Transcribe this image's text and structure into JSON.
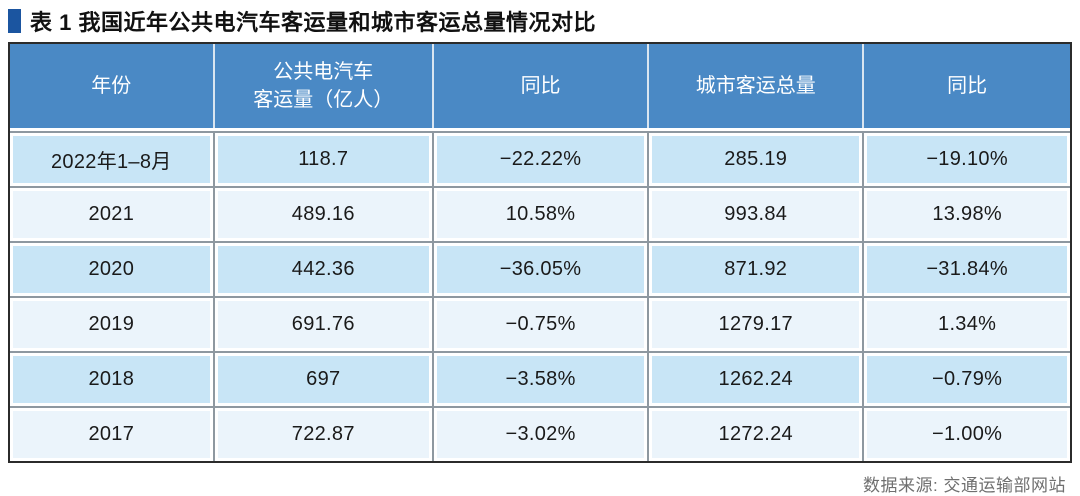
{
  "title": {
    "label": "表 1 我国近年公共电汽车客运量和城市客运总量情况对比"
  },
  "table": {
    "columns": [
      "年份",
      "公共电汽车\n客运量（亿人）",
      "同比",
      "城市客运总量",
      "同比"
    ],
    "rows": [
      [
        "2022年1–8月",
        "118.7",
        "−22.22%",
        "285.19",
        "−19.10%"
      ],
      [
        "2021",
        "489.16",
        "10.58%",
        "993.84",
        "13.98%"
      ],
      [
        "2020",
        "442.36",
        "−36.05%",
        "871.92",
        "−31.84%"
      ],
      [
        "2019",
        "691.76",
        "−0.75%",
        "1279.17",
        "1.34%"
      ],
      [
        "2018",
        "697",
        "−3.58%",
        "1262.24",
        "−0.79%"
      ],
      [
        "2017",
        "722.87",
        "−3.02%",
        "1272.24",
        "−1.00%"
      ]
    ]
  },
  "footer": {
    "source_label": "数据来源: 交通运输部网站"
  },
  "colors": {
    "title_square": "#1b55a0",
    "header_background": "#4a89c5",
    "header_text": "#ffffff",
    "row_blue": "#c8e5f6",
    "row_light": "#ebf4fb",
    "grid_line": "#8e98a0",
    "outer_border": "#2b2b2b",
    "source_text": "#6f6f6f"
  },
  "chart_data": {
    "type": "table",
    "title": "表 1 我国近年公共电汽车客运量和城市客运总量情况对比",
    "columns": [
      "年份",
      "公共电汽车客运量（亿人）",
      "同比",
      "城市客运总量",
      "同比"
    ],
    "rows": [
      [
        "2022年1–8月",
        118.7,
        "-22.22%",
        285.19,
        "-19.10%"
      ],
      [
        "2021",
        489.16,
        "10.58%",
        993.84,
        "13.98%"
      ],
      [
        "2020",
        442.36,
        "-36.05%",
        871.92,
        "-31.84%"
      ],
      [
        "2019",
        691.76,
        "-0.75%",
        1279.17,
        "1.34%"
      ],
      [
        "2018",
        697,
        "-3.58%",
        1262.24,
        "-0.79%"
      ],
      [
        "2017",
        722.87,
        "-3.02%",
        1272.24,
        "-1.00%"
      ]
    ],
    "source": "数据来源: 交通运输部网站"
  }
}
